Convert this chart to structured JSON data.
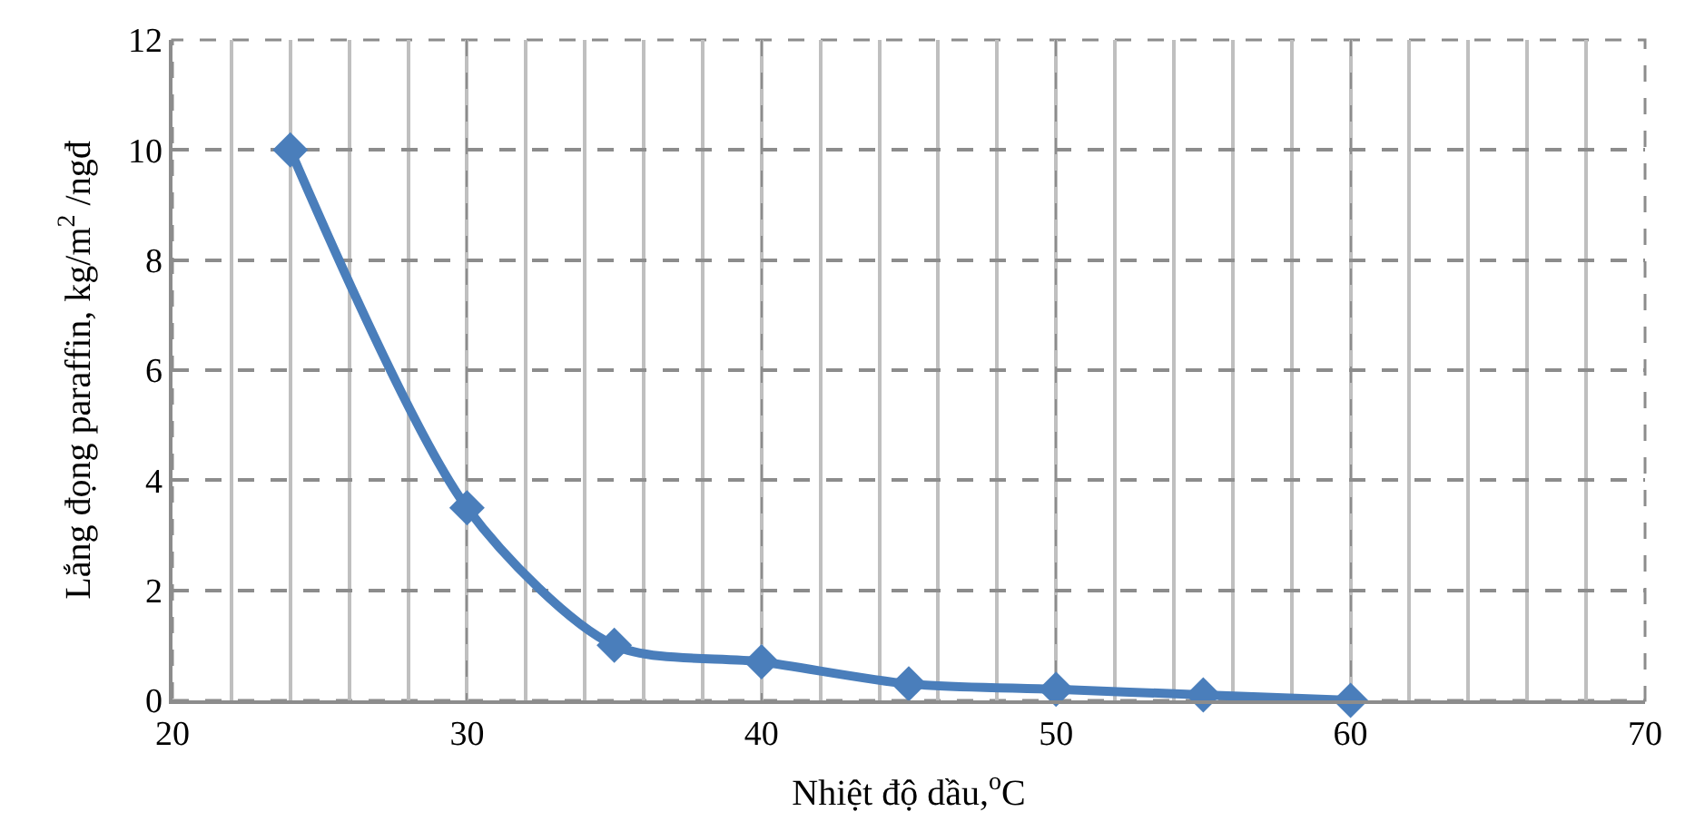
{
  "chart_data": {
    "type": "line",
    "xlabel": "Nhiệt độ dầu,$^{o}$C",
    "ylabel": "Lắng đọng paraffin, kg/m$^{2}$ /ngđ",
    "x": [
      24,
      30,
      35,
      40,
      45,
      50,
      55,
      60
    ],
    "series": [
      {
        "color": "#4a7ebb",
        "values": [
          10,
          3.5,
          1.0,
          0.7,
          0.3,
          0.2,
          0.1,
          0.0
        ]
      }
    ],
    "xlim": [
      20,
      70
    ],
    "xticks": [
      20,
      30,
      40,
      50,
      60,
      70
    ],
    "ylim": [
      0,
      12
    ],
    "yticks": [
      0,
      2,
      4,
      6,
      8,
      10,
      12
    ],
    "grid": true,
    "marker": "diamond",
    "line_style": "solid"
  }
}
